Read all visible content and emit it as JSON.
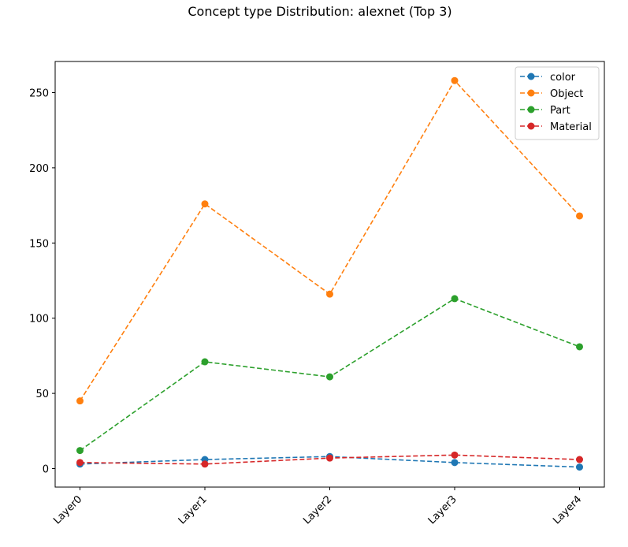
{
  "chart_data": {
    "type": "line",
    "title": "Concept type Distribution: alexnet (Top 3)",
    "xlabel": "",
    "ylabel": "",
    "categories": [
      "Layer0",
      "Layer1",
      "Layer2",
      "Layer3",
      "Layer4"
    ],
    "ylim": [
      -12,
      270
    ],
    "yticks": [
      0,
      50,
      100,
      150,
      200,
      250
    ],
    "grid": false,
    "legend_position": "top-right",
    "line_style": "dashed",
    "marker": "circle",
    "series": [
      {
        "name": "color",
        "color": "#1f77b4",
        "values": [
          3,
          6,
          8,
          4,
          1
        ]
      },
      {
        "name": "Object",
        "color": "#ff7f0e",
        "values": [
          45,
          176,
          116,
          258,
          168
        ]
      },
      {
        "name": "Part",
        "color": "#2ca02c",
        "values": [
          12,
          71,
          61,
          113,
          81
        ]
      },
      {
        "name": "Material",
        "color": "#d62728",
        "values": [
          4,
          3,
          7,
          9,
          6
        ]
      }
    ]
  }
}
